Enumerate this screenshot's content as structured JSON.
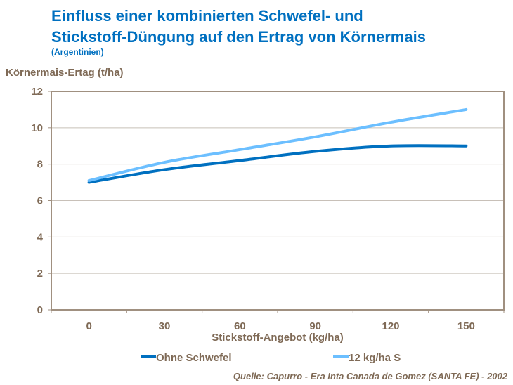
{
  "chart_data": {
    "type": "line",
    "title": "Einfluss einer kombinierten Schwefel- und Stickstoff-Düngung auf den Ertrag von Körnermais",
    "title_lines": [
      "Einfluss einer kombinierten Schwefel- und",
      "Stickstoff-Düngung auf den Ertrag von Körnermais"
    ],
    "subtitle": "(Argentinien)",
    "ylabel": "Körnermais-Ertag (t/ha)",
    "xlabel": "Stickstoff-Angebot (kg/ha)",
    "categories": [
      "0",
      "30",
      "60",
      "90",
      "120",
      "150"
    ],
    "ylim": [
      0,
      12
    ],
    "yticks": [
      "0",
      "2",
      "4",
      "6",
      "8",
      "10",
      "12"
    ],
    "grid": true,
    "smoothed": true,
    "legend_position": "bottom",
    "series": [
      {
        "name": "Ohne Schwefel",
        "color": "#0070c0",
        "values": [
          7.0,
          7.7,
          8.2,
          8.7,
          9.0,
          9.0
        ]
      },
      {
        "name": "12 kg/ha S",
        "color": "#6cbfff",
        "values": [
          7.1,
          8.1,
          8.8,
          9.5,
          10.3,
          11.0
        ]
      }
    ],
    "source": "Quelle: Capurro -  Era Inta Canada de Gomez (SANTA FE) - 2002"
  }
}
